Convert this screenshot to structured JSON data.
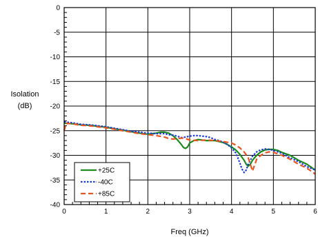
{
  "chart_data": {
    "type": "line",
    "xlabel": "Freq (GHz)",
    "ylabel_line1": "Isolation",
    "ylabel_line2": "(dB)",
    "xlim": [
      0,
      6
    ],
    "ylim": [
      -40,
      0
    ],
    "x_ticks": [
      0,
      1,
      2,
      3,
      4,
      5,
      6
    ],
    "y_ticks": [
      0,
      -5,
      -10,
      -15,
      -20,
      -25,
      -30,
      -35,
      -40
    ],
    "grid": true,
    "legend_position": "bottom-left",
    "series": [
      {
        "name": "+25C",
        "color": "#1a8a1a",
        "dash": "solid",
        "points": [
          [
            0,
            -23.5
          ],
          [
            0.2,
            -23.6
          ],
          [
            0.4,
            -23.8
          ],
          [
            0.6,
            -23.9
          ],
          [
            0.8,
            -24.1
          ],
          [
            1.0,
            -24.3
          ],
          [
            1.2,
            -24.6
          ],
          [
            1.4,
            -24.9
          ],
          [
            1.6,
            -25.2
          ],
          [
            1.8,
            -25.5
          ],
          [
            2.0,
            -25.7
          ],
          [
            2.1,
            -25.6
          ],
          [
            2.2,
            -25.5
          ],
          [
            2.3,
            -25.3
          ],
          [
            2.4,
            -25.3
          ],
          [
            2.5,
            -25.5
          ],
          [
            2.6,
            -26.0
          ],
          [
            2.7,
            -26.8
          ],
          [
            2.8,
            -27.8
          ],
          [
            2.85,
            -28.4
          ],
          [
            2.9,
            -28.6
          ],
          [
            2.95,
            -28.3
          ],
          [
            3.0,
            -27.5
          ],
          [
            3.1,
            -27.0
          ],
          [
            3.2,
            -26.8
          ],
          [
            3.3,
            -26.9
          ],
          [
            3.4,
            -27.0
          ],
          [
            3.5,
            -27.0
          ],
          [
            3.6,
            -27.0
          ],
          [
            3.7,
            -27.2
          ],
          [
            3.8,
            -27.4
          ],
          [
            3.9,
            -27.8
          ],
          [
            4.0,
            -28.3
          ],
          [
            4.1,
            -28.9
          ],
          [
            4.2,
            -29.8
          ],
          [
            4.3,
            -31.0
          ],
          [
            4.35,
            -31.8
          ],
          [
            4.4,
            -32.2
          ],
          [
            4.45,
            -31.8
          ],
          [
            4.5,
            -31.0
          ],
          [
            4.6,
            -30.0
          ],
          [
            4.7,
            -29.3
          ],
          [
            4.8,
            -28.9
          ],
          [
            4.9,
            -28.8
          ],
          [
            5.0,
            -28.8
          ],
          [
            5.1,
            -29.0
          ],
          [
            5.2,
            -29.4
          ],
          [
            5.4,
            -30.0
          ],
          [
            5.6,
            -31.0
          ],
          [
            5.8,
            -31.8
          ],
          [
            6.0,
            -33.0
          ]
        ]
      },
      {
        "name": "-40C",
        "color": "#1a3ad8",
        "dash": "dotted",
        "points": [
          [
            0,
            -23.2
          ],
          [
            0.2,
            -23.4
          ],
          [
            0.4,
            -23.7
          ],
          [
            0.6,
            -23.8
          ],
          [
            0.8,
            -24.0
          ],
          [
            1.0,
            -24.2
          ],
          [
            1.2,
            -24.5
          ],
          [
            1.4,
            -24.8
          ],
          [
            1.6,
            -25.1
          ],
          [
            1.8,
            -25.3
          ],
          [
            2.0,
            -25.5
          ],
          [
            2.2,
            -25.6
          ],
          [
            2.4,
            -25.6
          ],
          [
            2.5,
            -25.8
          ],
          [
            2.6,
            -25.9
          ],
          [
            2.7,
            -26.1
          ],
          [
            2.8,
            -26.4
          ],
          [
            2.9,
            -26.3
          ],
          [
            3.0,
            -26.1
          ],
          [
            3.1,
            -26.0
          ],
          [
            3.2,
            -26.0
          ],
          [
            3.3,
            -26.1
          ],
          [
            3.4,
            -26.2
          ],
          [
            3.5,
            -26.4
          ],
          [
            3.6,
            -26.8
          ],
          [
            3.7,
            -27.0
          ],
          [
            3.8,
            -27.3
          ],
          [
            3.9,
            -27.8
          ],
          [
            4.0,
            -28.5
          ],
          [
            4.1,
            -29.5
          ],
          [
            4.15,
            -30.5
          ],
          [
            4.2,
            -31.6
          ],
          [
            4.25,
            -32.8
          ],
          [
            4.3,
            -33.5
          ],
          [
            4.35,
            -33.0
          ],
          [
            4.4,
            -31.8
          ],
          [
            4.5,
            -30.2
          ],
          [
            4.6,
            -29.3
          ],
          [
            4.7,
            -28.9
          ],
          [
            4.8,
            -28.7
          ],
          [
            4.9,
            -28.8
          ],
          [
            5.0,
            -29.0
          ],
          [
            5.2,
            -29.6
          ],
          [
            5.4,
            -30.5
          ],
          [
            5.6,
            -31.3
          ],
          [
            5.8,
            -32.3
          ],
          [
            6.0,
            -33.0
          ]
        ]
      },
      {
        "name": "+85C",
        "color": "#e8531e",
        "dash": "dashed",
        "points": [
          [
            0,
            -25.0
          ],
          [
            0.05,
            -23.5
          ],
          [
            0.2,
            -23.6
          ],
          [
            0.4,
            -23.9
          ],
          [
            0.6,
            -24.0
          ],
          [
            0.8,
            -24.2
          ],
          [
            1.0,
            -24.4
          ],
          [
            1.2,
            -24.7
          ],
          [
            1.4,
            -25.0
          ],
          [
            1.6,
            -25.3
          ],
          [
            1.8,
            -25.6
          ],
          [
            2.0,
            -25.8
          ],
          [
            2.2,
            -26.0
          ],
          [
            2.4,
            -26.3
          ],
          [
            2.5,
            -26.6
          ],
          [
            2.6,
            -26.7
          ],
          [
            2.7,
            -26.6
          ],
          [
            2.8,
            -26.5
          ],
          [
            2.9,
            -26.6
          ],
          [
            3.0,
            -26.9
          ],
          [
            3.2,
            -27.0
          ],
          [
            3.4,
            -26.9
          ],
          [
            3.6,
            -27.0
          ],
          [
            3.8,
            -27.2
          ],
          [
            4.0,
            -27.5
          ],
          [
            4.1,
            -27.9
          ],
          [
            4.2,
            -28.5
          ],
          [
            4.3,
            -29.3
          ],
          [
            4.4,
            -30.5
          ],
          [
            4.45,
            -31.8
          ],
          [
            4.5,
            -33.2
          ],
          [
            4.55,
            -32.0
          ],
          [
            4.6,
            -30.8
          ],
          [
            4.7,
            -30.0
          ],
          [
            4.8,
            -29.5
          ],
          [
            4.9,
            -29.3
          ],
          [
            5.0,
            -29.4
          ],
          [
            5.2,
            -30.0
          ],
          [
            5.4,
            -30.8
          ],
          [
            5.6,
            -31.8
          ],
          [
            5.8,
            -32.6
          ],
          [
            6.0,
            -33.8
          ]
        ]
      }
    ]
  }
}
